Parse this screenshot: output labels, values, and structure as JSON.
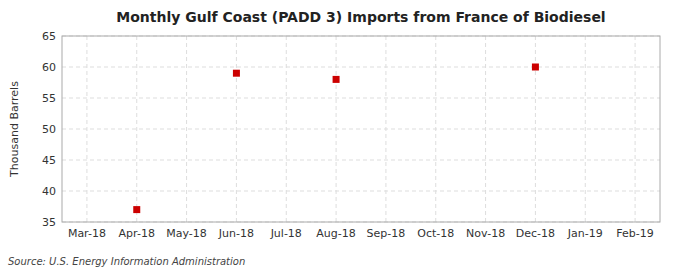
{
  "chart_data": {
    "type": "scatter",
    "title": "Monthly Gulf Coast (PADD 3) Imports from France of Biodiesel",
    "ylabel": "Thousand Barrels",
    "source": "Source: U.S. Energy Information Administration",
    "categories": [
      "Mar-18",
      "Apr-18",
      "May-18",
      "Jun-18",
      "Jul-18",
      "Aug-18",
      "Sep-18",
      "Oct-18",
      "Nov-18",
      "Dec-18",
      "Jan-19",
      "Feb-19"
    ],
    "values": [
      null,
      37.0,
      null,
      59.0,
      null,
      58.0,
      null,
      null,
      null,
      60.0,
      null,
      null
    ],
    "color": "#cc0000",
    "marker": "square",
    "ylim": [
      35,
      65
    ],
    "yticks": [
      35,
      40,
      45,
      50,
      55,
      60,
      65
    ],
    "grid": true
  }
}
